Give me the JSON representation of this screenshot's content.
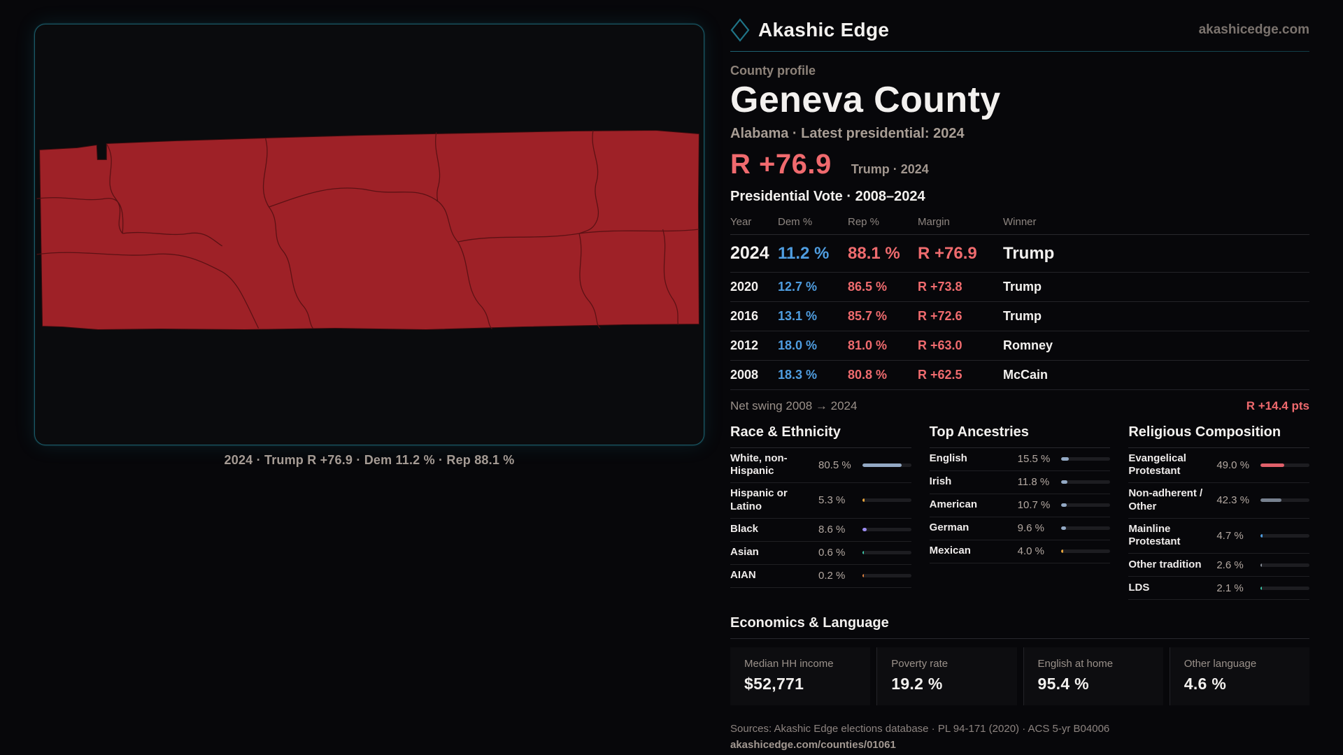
{
  "brand": {
    "name": "Akashic Edge",
    "site": "akashicedge.com"
  },
  "profile": {
    "kicker": "County profile",
    "title": "Geneva County",
    "meta": "Alabama · Latest presidential: 2024",
    "margin_value": "R +76.9",
    "margin_note": "Trump · 2024"
  },
  "map": {
    "caption": "2024 · Trump R +76.9 · Dem 11.2 % · Rep 88.1 %",
    "fill": "#9e2127"
  },
  "vote": {
    "title": "Presidential Vote · 2008–2024",
    "columns": [
      "Year",
      "Dem %",
      "Rep %",
      "Margin",
      "Winner"
    ],
    "rows": [
      {
        "year": "2024",
        "dem": "11.2 %",
        "rep": "88.1 %",
        "margin": "R +76.9",
        "winner": "Trump"
      },
      {
        "year": "2020",
        "dem": "12.7 %",
        "rep": "86.5 %",
        "margin": "R +73.8",
        "winner": "Trump"
      },
      {
        "year": "2016",
        "dem": "13.1 %",
        "rep": "85.7 %",
        "margin": "R +72.6",
        "winner": "Trump"
      },
      {
        "year": "2012",
        "dem": "18.0 %",
        "rep": "81.0 %",
        "margin": "R +63.0",
        "winner": "Romney"
      },
      {
        "year": "2008",
        "dem": "18.3 %",
        "rep": "80.8 %",
        "margin": "R +62.5",
        "winner": "McCain"
      }
    ],
    "net_swing_label": "Net swing 2008 → 2024",
    "net_swing_value": "R +14.4 pts"
  },
  "race": {
    "title": "Race & Ethnicity",
    "items": [
      {
        "label": "White, non-Hispanic",
        "value": "80.5 %",
        "pct": 80.5,
        "color": "#93a9c4"
      },
      {
        "label": "Hispanic or Latino",
        "value": "5.3 %",
        "pct": 5.3,
        "color": "#e5a43c"
      },
      {
        "label": "Black",
        "value": "8.6 %",
        "pct": 8.6,
        "color": "#9b8cf0"
      },
      {
        "label": "Asian",
        "value": "0.6 %",
        "pct": 0.6,
        "color": "#3ec8a8"
      },
      {
        "label": "AIAN",
        "value": "0.2 %",
        "pct": 0.2,
        "color": "#e0813f"
      }
    ]
  },
  "ancestries": {
    "title": "Top Ancestries",
    "items": [
      {
        "label": "English",
        "value": "15.5 %",
        "pct": 15.5,
        "color": "#93a9c4"
      },
      {
        "label": "Irish",
        "value": "11.8 %",
        "pct": 11.8,
        "color": "#93a9c4"
      },
      {
        "label": "American",
        "value": "10.7 %",
        "pct": 10.7,
        "color": "#93a9c4"
      },
      {
        "label": "German",
        "value": "9.6 %",
        "pct": 9.6,
        "color": "#93a9c4"
      },
      {
        "label": "Mexican",
        "value": "4.0 %",
        "pct": 4.0,
        "color": "#e5a43c"
      }
    ]
  },
  "religion": {
    "title": "Religious Composition",
    "items": [
      {
        "label": "Evangelical Protestant",
        "value": "49.0 %",
        "pct": 49.0,
        "color": "#e0606a"
      },
      {
        "label": "Non-adherent / Other",
        "value": "42.3 %",
        "pct": 42.3,
        "color": "#77818f"
      },
      {
        "label": "Mainline Protestant",
        "value": "4.7 %",
        "pct": 4.7,
        "color": "#4f9de0"
      },
      {
        "label": "Other tradition",
        "value": "2.6 %",
        "pct": 2.6,
        "color": "#8a9099"
      },
      {
        "label": "LDS",
        "value": "2.1 %",
        "pct": 2.1,
        "color": "#3ec8a8"
      }
    ]
  },
  "economics": {
    "title": "Economics & Language",
    "stats": [
      {
        "label": "Median HH income",
        "value": "$52,771"
      },
      {
        "label": "Poverty rate",
        "value": "19.2 %"
      },
      {
        "label": "English at home",
        "value": "95.4 %"
      },
      {
        "label": "Other language",
        "value": "4.6 %"
      }
    ]
  },
  "footer": {
    "sources": "Sources: Akashic Edge elections database · PL 94-171 (2020) · ACS 5-yr B04006",
    "permalink": "akashicedge.com/counties/01061"
  }
}
